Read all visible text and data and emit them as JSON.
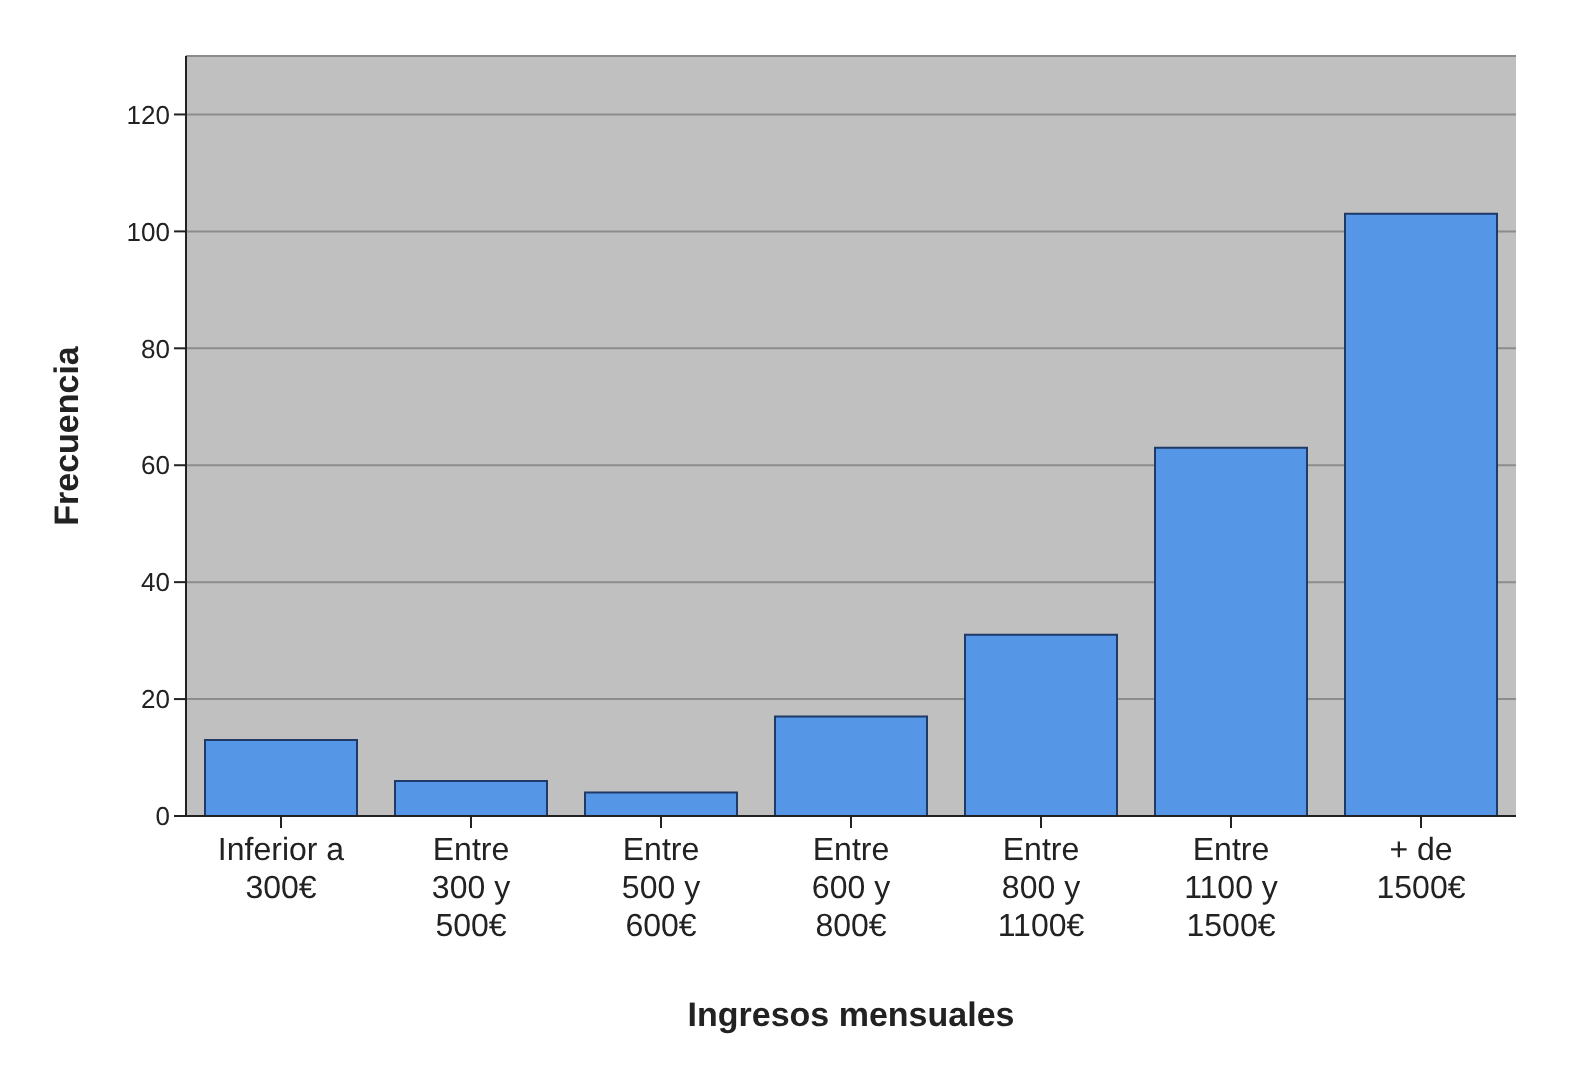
{
  "chart_data": {
    "type": "bar",
    "xlabel": "Ingresos mensuales",
    "ylabel": "Frecuencia",
    "categories": [
      "Inferior a 300€",
      "Entre 300 y 500€",
      "Entre 500 y 600€",
      "Entre 600 y 800€",
      "Entre 800 y 1100€",
      "Entre 1100 y 1500€",
      "+ de 1500€"
    ],
    "values": [
      13,
      6,
      4,
      17,
      31,
      63,
      103
    ],
    "color": "#5596e6",
    "ylim": [
      0,
      130
    ],
    "yticks": [
      0,
      20,
      40,
      60,
      80,
      100,
      120
    ],
    "grid": "y"
  }
}
